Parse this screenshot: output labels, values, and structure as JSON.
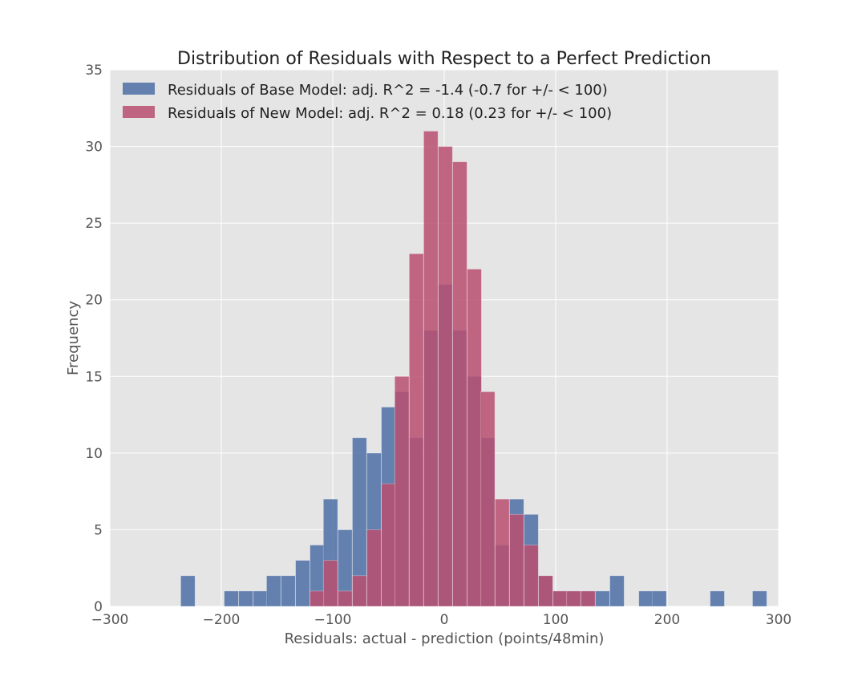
{
  "chart_data": {
    "type": "bar",
    "title": "Distribution of Residuals with Respect to a Perfect Prediction",
    "xlabel": "Residuals: actual - prediction (points/48min)",
    "ylabel": "Frequency",
    "xlim": [
      -300,
      300
    ],
    "ylim": [
      0,
      35
    ],
    "xticks": [
      -300,
      -200,
      -100,
      0,
      100,
      200,
      300
    ],
    "xtick_labels": [
      "−300",
      "−200",
      "−100",
      "0",
      "100",
      "200",
      "300"
    ],
    "yticks": [
      0,
      5,
      10,
      15,
      20,
      25,
      30,
      35
    ],
    "ytick_labels": [
      "0",
      "5",
      "10",
      "15",
      "20",
      "25",
      "30",
      "35"
    ],
    "grid": true,
    "legend_position": "upper-left",
    "background_color": "#e5e5e5",
    "series": [
      {
        "name": "Residuals of Base Model: adj. R^2 = -1.4 (-0.7 for +/- < 100)",
        "color": "#4c6fa6",
        "bin_width": 12.8,
        "bins": [
          [
            -230,
            2
          ],
          [
            -191,
            1
          ],
          [
            -178,
            1
          ],
          [
            -165,
            1
          ],
          [
            -153,
            2
          ],
          [
            -140,
            2
          ],
          [
            -127,
            3
          ],
          [
            -114,
            4
          ],
          [
            -102,
            7
          ],
          [
            -89,
            5
          ],
          [
            -76,
            11
          ],
          [
            -63,
            10
          ],
          [
            -50,
            13
          ],
          [
            -38,
            14
          ],
          [
            -25,
            11
          ],
          [
            -12,
            18
          ],
          [
            1,
            21
          ],
          [
            14,
            18
          ],
          [
            27,
            15
          ],
          [
            39,
            11
          ],
          [
            52,
            4
          ],
          [
            65,
            7
          ],
          [
            78,
            6
          ],
          [
            91,
            2
          ],
          [
            104,
            1
          ],
          [
            116,
            1
          ],
          [
            129,
            1
          ],
          [
            142,
            1
          ],
          [
            155,
            2
          ],
          [
            181,
            1
          ],
          [
            193,
            1
          ],
          [
            245,
            1
          ],
          [
            283,
            1
          ]
        ]
      },
      {
        "name": "Residuals of New Model: adj. R^2 = 0.18 (0.23 for +/- < 100)",
        "color": "#b84f70",
        "bin_width": 12.8,
        "bins": [
          [
            -114,
            1
          ],
          [
            -102,
            3
          ],
          [
            -89,
            1
          ],
          [
            -76,
            2
          ],
          [
            -63,
            5
          ],
          [
            -50,
            8
          ],
          [
            -38,
            15
          ],
          [
            -25,
            23
          ],
          [
            -12,
            31
          ],
          [
            1,
            30
          ],
          [
            14,
            29
          ],
          [
            27,
            22
          ],
          [
            39,
            14
          ],
          [
            52,
            7
          ],
          [
            65,
            6
          ],
          [
            78,
            4
          ],
          [
            91,
            2
          ],
          [
            104,
            1
          ],
          [
            116,
            1
          ],
          [
            129,
            1
          ]
        ]
      }
    ]
  }
}
